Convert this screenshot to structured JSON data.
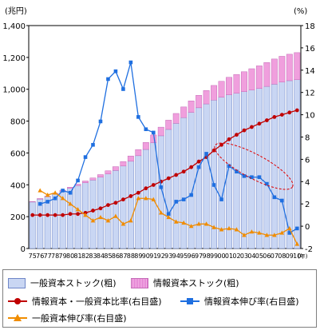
{
  "chart_data": {
    "type": "bar",
    "y_left_label": "(兆円)",
    "y_right_label": "(%)",
    "x_unit_label": "(年)",
    "ylim_left": [
      0,
      1400
    ],
    "ylim_right": [
      -2,
      18
    ],
    "y_left_ticks": [
      0,
      200,
      400,
      600,
      800,
      1000,
      1200,
      1400
    ],
    "y_right_ticks": [
      -2,
      0,
      2,
      4,
      6,
      8,
      10,
      12,
      14,
      16,
      18
    ],
    "y_left_tick_labels": [
      "0",
      "200",
      "400",
      "600",
      "800",
      "1,000",
      "1,200",
      "1,400"
    ],
    "categories": [
      "75",
      "76",
      "77",
      "78",
      "79",
      "80",
      "81",
      "82",
      "83",
      "84",
      "85",
      "86",
      "87",
      "88",
      "89",
      "90",
      "91",
      "92",
      "93",
      "94",
      "95",
      "96",
      "97",
      "98",
      "99",
      "00",
      "01",
      "02",
      "03",
      "04",
      "05",
      "06",
      "07",
      "08",
      "09",
      "10"
    ],
    "bar_series": [
      {
        "name": "一般資本ストック(粗)",
        "axis": "left",
        "color": "#c9d6f3",
        "values": [
          292,
          310,
          325,
          342,
          360,
          378,
          395,
          413,
          430,
          448,
          468,
          490,
          518,
          548,
          583,
          622,
          664,
          708,
          748,
          786,
          822,
          855,
          884,
          908,
          932,
          950,
          965,
          975,
          985,
          995,
          1005,
          1018,
          1032,
          1045,
          1054,
          1060
        ]
      },
      {
        "name": "情報資本ストック(粗)",
        "axis": "left",
        "color": "#f09fdd",
        "values": [
          3,
          4,
          4,
          5,
          6,
          7,
          9,
          11,
          13,
          16,
          20,
          24,
          28,
          33,
          38,
          44,
          49,
          54,
          58,
          62,
          67,
          72,
          78,
          84,
          92,
          100,
          110,
          118,
          125,
          134,
          142,
          150,
          158,
          162,
          166,
          170
        ]
      }
    ],
    "line_series": [
      {
        "name": "情報資本・一般資本比率(右目盛)",
        "axis": "right",
        "color": "#c00000",
        "marker": "circle",
        "values": [
          1.0,
          1.0,
          1.0,
          1.0,
          1.0,
          1.1,
          1.1,
          1.2,
          1.4,
          1.6,
          1.9,
          2.1,
          2.4,
          2.7,
          3.0,
          3.4,
          3.7,
          4.0,
          4.3,
          4.6,
          4.9,
          5.3,
          5.8,
          6.2,
          6.8,
          7.3,
          7.8,
          8.2,
          8.6,
          8.9,
          9.2,
          9.5,
          9.8,
          10.0,
          10.2,
          10.4
        ]
      },
      {
        "name": "情報資本伸び率(右目盛)",
        "axis": "right",
        "color": "#1f6fe0",
        "marker": "square",
        "values": [
          null,
          2.0,
          2.2,
          2.5,
          3.2,
          3.0,
          4.1,
          6.2,
          7.3,
          9.4,
          13.2,
          13.9,
          12.3,
          14.7,
          9.8,
          8.7,
          8.4,
          3.5,
          1.1,
          2.2,
          2.4,
          2.8,
          5.3,
          6.5,
          3.7,
          2.4,
          5.4,
          4.9,
          4.5,
          4.4,
          4.4,
          3.8,
          2.6,
          2.3,
          -0.6,
          -0.2
        ]
      },
      {
        "name": "一般資本伸び率(右目盛)",
        "axis": "right",
        "color": "#f08c00",
        "marker": "triangle",
        "values": [
          null,
          3.2,
          2.8,
          3.0,
          2.5,
          2.0,
          1.5,
          1.0,
          0.5,
          0.8,
          0.5,
          0.9,
          0.2,
          0.5,
          2.5,
          2.5,
          2.4,
          1.2,
          0.8,
          0.4,
          0.3,
          0.0,
          0.2,
          0.2,
          -0.1,
          -0.3,
          -0.2,
          -0.3,
          -0.8,
          -0.5,
          -0.6,
          -0.8,
          -0.8,
          -0.6,
          -0.2,
          -1.6
        ]
      }
    ],
    "annotation": {
      "type": "ellipse",
      "color": "#e00000",
      "style": "dashed"
    },
    "grid": false,
    "legend_placement": "bottom"
  }
}
